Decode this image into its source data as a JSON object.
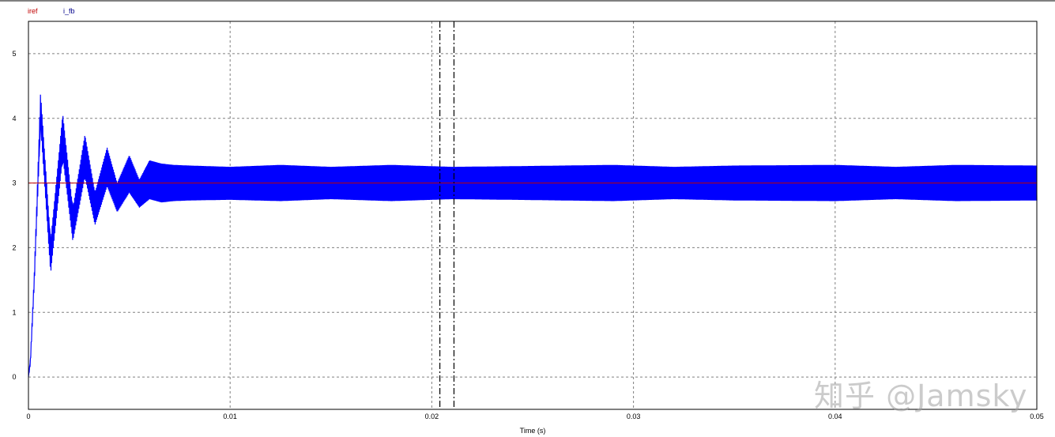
{
  "chart_data": {
    "type": "line",
    "xlabel": "Time (s)",
    "ylabel": "",
    "xlim": [
      0,
      0.05
    ],
    "ylim": [
      -0.5,
      5.5
    ],
    "xticks": [
      "0",
      "0.01",
      "0.02",
      "0.03",
      "0.04",
      "0.05"
    ],
    "xtick_values": [
      0,
      0.01,
      0.02,
      0.03,
      0.04,
      0.05
    ],
    "yticks": [
      "0",
      "1",
      "2",
      "3",
      "4",
      "5"
    ],
    "ytick_values": [
      0,
      1,
      2,
      3,
      4,
      5
    ],
    "grid": true,
    "legend_placement": "top-left",
    "cursors_time": [
      0.0204,
      0.0211
    ],
    "series": [
      {
        "name": "iref",
        "color": "#c00000",
        "x": [
          0,
          0.05
        ],
        "y": [
          3,
          3
        ]
      },
      {
        "name": "i_fb",
        "color": "#0000ff",
        "envelope": {
          "x": [
            0,
            0.0001,
            0.0003,
            0.0006,
            0.0011,
            0.0017,
            0.0022,
            0.0028,
            0.0033,
            0.0039,
            0.0044,
            0.005,
            0.0055,
            0.006,
            0.0066,
            0.0072,
            0.008,
            0.01,
            0.0125,
            0.015,
            0.018,
            0.021,
            0.024,
            0.029,
            0.032,
            0.035,
            0.04,
            0.043,
            0.046,
            0.05
          ],
          "upper": [
            0,
            0.3,
            1.7,
            4.4,
            2.1,
            4.07,
            2.6,
            3.75,
            2.85,
            3.55,
            3.0,
            3.43,
            3.05,
            3.35,
            3.3,
            3.28,
            3.27,
            3.25,
            3.28,
            3.25,
            3.28,
            3.25,
            3.26,
            3.28,
            3.25,
            3.27,
            3.28,
            3.25,
            3.28,
            3.27
          ],
          "lower": [
            0,
            0.2,
            1.5,
            3.9,
            1.6,
            3.4,
            2.1,
            3.1,
            2.35,
            2.95,
            2.55,
            2.85,
            2.62,
            2.75,
            2.7,
            2.72,
            2.73,
            2.74,
            2.72,
            2.75,
            2.72,
            2.75,
            2.74,
            2.72,
            2.75,
            2.73,
            2.72,
            2.75,
            2.72,
            2.73
          ]
        }
      }
    ]
  },
  "watermark": "知乎 @Jamsky"
}
